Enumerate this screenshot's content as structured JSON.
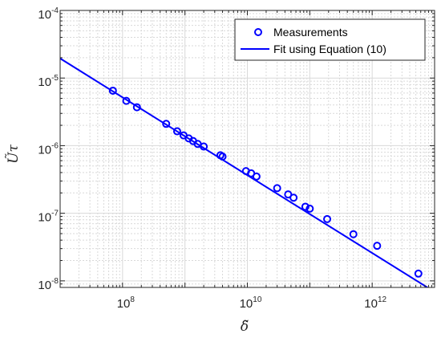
{
  "chart_data": {
    "type": "scatter",
    "x_scale": "log",
    "y_scale": "log",
    "xlim": [
      10000000,
      10000000000000
    ],
    "ylim": [
      8e-09,
      0.0001
    ],
    "grid": true,
    "minor_grid": true,
    "xlabel": "δ̃",
    "ylabel": "Ũτ",
    "x_ticks": [
      {
        "value": 100000000,
        "base": "10",
        "exp": "8"
      },
      {
        "value": 10000000000,
        "base": "10",
        "exp": "10"
      },
      {
        "value": 1000000000000,
        "base": "10",
        "exp": "12"
      }
    ],
    "y_ticks": [
      {
        "value": 1e-08,
        "base": "10",
        "exp": "-8"
      },
      {
        "value": 1e-07,
        "base": "10",
        "exp": "-7"
      },
      {
        "value": 1e-06,
        "base": "10",
        "exp": "-6"
      },
      {
        "value": 1e-05,
        "base": "10",
        "exp": "-5"
      },
      {
        "value": 0.0001,
        "base": "10",
        "exp": "-4"
      }
    ],
    "legend_position": "top-right",
    "colors": {
      "series": "#0000ff",
      "axes": "#262626",
      "grid": "#d9d9d9"
    },
    "series": [
      {
        "name": "Measurements",
        "kind": "markers",
        "marker": "circle",
        "points": [
          [
            70000000,
            6.5e-06
          ],
          [
            115000000,
            4.6e-06
          ],
          [
            170000000,
            3.7e-06
          ],
          [
            500000000,
            2.1e-06
          ],
          [
            750000000,
            1.63e-06
          ],
          [
            950000000,
            1.42e-06
          ],
          [
            1150000000,
            1.28e-06
          ],
          [
            1350000000,
            1.17e-06
          ],
          [
            1600000000,
            1.06e-06
          ],
          [
            2000000000,
            9.7e-07
          ],
          [
            3700000000,
            7.2e-07
          ],
          [
            4000000000,
            6.9e-07
          ],
          [
            9500000000,
            4.2e-07
          ],
          [
            11500000000,
            3.9e-07
          ],
          [
            14000000000,
            3.5e-07
          ],
          [
            30000000000,
            2.35e-07
          ],
          [
            45000000000,
            1.9e-07
          ],
          [
            55000000000,
            1.7e-07
          ],
          [
            85000000000,
            1.25e-07
          ],
          [
            100000000000,
            1.17e-07
          ],
          [
            190000000000,
            8.2e-08
          ],
          [
            500000000000,
            4.9e-08
          ],
          [
            1200000000000,
            3.3e-08
          ],
          [
            5500000000000,
            1.28e-08
          ]
        ]
      },
      {
        "name": "Fit using Equation (10)",
        "kind": "line",
        "points": [
          [
            10000000,
            1.95e-05
          ],
          [
            8000000000000,
            7.8e-09
          ]
        ]
      }
    ]
  }
}
